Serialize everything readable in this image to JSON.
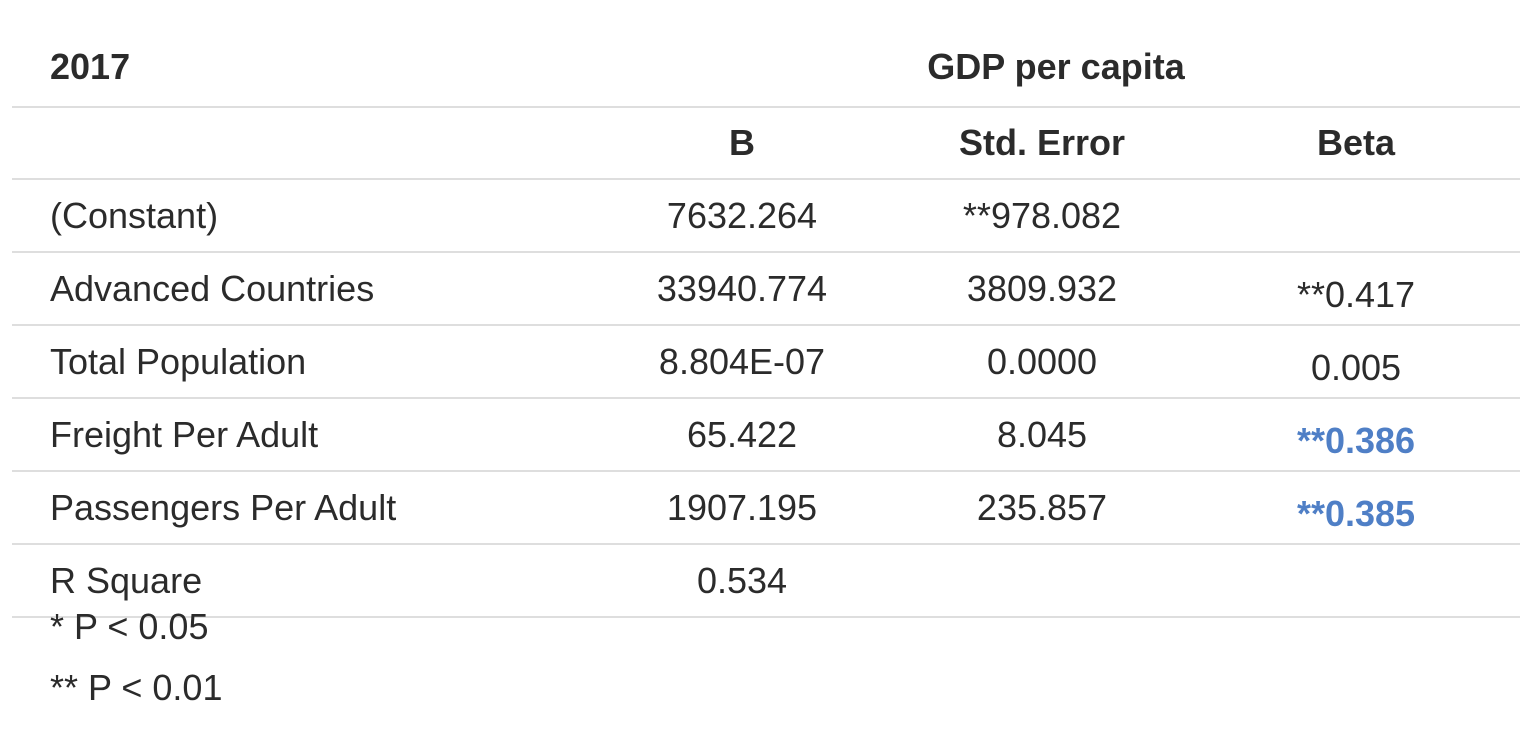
{
  "header": {
    "year": "2017",
    "group_title": "GDP per capita"
  },
  "columns": [
    "B",
    "Std. Error",
    "Beta"
  ],
  "rows": [
    {
      "label": "(Constant)",
      "b": "7632.264",
      "std_error": "**978.082",
      "beta": ""
    },
    {
      "label": "Advanced Countries",
      "b": "33940.774",
      "std_error": "3809.932",
      "beta": "**0.417"
    },
    {
      "label": "Total Population",
      "b": "8.804E-07",
      "std_error": "0.0000",
      "beta": "0.005"
    },
    {
      "label": "Freight Per Adult",
      "b": "65.422",
      "std_error": "8.045",
      "beta": "**0.386"
    },
    {
      "label": "Passengers Per Adult",
      "b": "1907.195",
      "std_error": "235.857",
      "beta": "**0.385"
    },
    {
      "label": "R Square",
      "b": "0.534",
      "std_error": "",
      "beta": ""
    }
  ],
  "highlight_color": "#4f7fc6",
  "highlighted_cells": [
    "rows.3.beta",
    "rows.4.beta"
  ],
  "notes": [
    "* P < 0.05",
    "** P < 0.01"
  ]
}
